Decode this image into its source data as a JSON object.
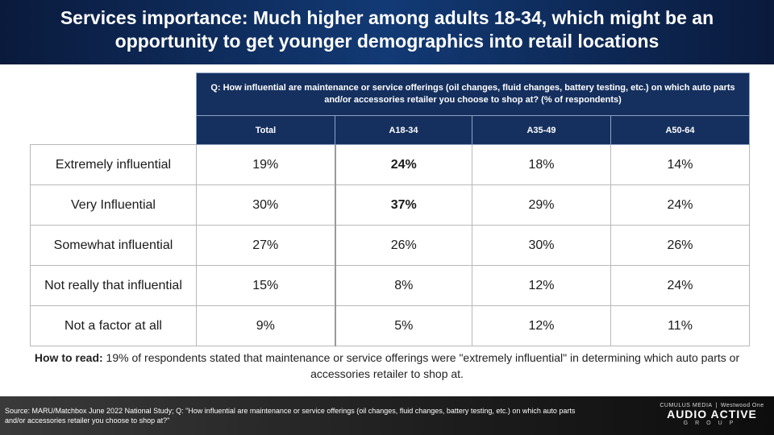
{
  "title": "Services importance: Much higher among adults 18-34, which might be an opportunity to get younger demographics into retail locations",
  "question": "Q: How influential are maintenance or service offerings (oil changes, fluid changes, battery testing, etc.) on which auto parts and/or accessories retailer you choose to shop at? (% of respondents)",
  "chart_data": {
    "type": "table",
    "columns": [
      "Total",
      "A18-34",
      "A35-49",
      "A50-64"
    ],
    "rows": [
      {
        "label": "Extremely influential",
        "values": [
          "19%",
          "24%",
          "18%",
          "14%"
        ]
      },
      {
        "label": "Very Influential",
        "values": [
          "30%",
          "37%",
          "29%",
          "24%"
        ]
      },
      {
        "label": "Somewhat influential",
        "values": [
          "27%",
          "26%",
          "30%",
          "26%"
        ]
      },
      {
        "label": "Not really that influential",
        "values": [
          "15%",
          "8%",
          "12%",
          "24%"
        ]
      },
      {
        "label": "Not a factor at all",
        "values": [
          "9%",
          "5%",
          "12%",
          "11%"
        ]
      }
    ],
    "highlighted": [
      [
        0,
        1
      ],
      [
        1,
        1
      ]
    ]
  },
  "how_to_read": {
    "label": "How to read:",
    "text": " 19% of respondents stated that maintenance or service offerings were \"extremely influential\" in determining which auto parts or accessories retailer to shop at."
  },
  "source": "Source: MARU/Matchbox June 2022 National Study; Q: \"How influential are maintenance or service offerings (oil changes, fluid changes, battery testing, etc.) on which auto parts and/or accessories retailer you choose to shop at?\"",
  "logo": {
    "top_left": "CUMULUS MEDIA",
    "top_right": "Westwood One",
    "main": "AUDIO ACTIVE",
    "sub": "GROUP"
  },
  "colors": {
    "header_bg": "#123a75",
    "table_header_bg": "#15305e",
    "footer_bg": "#1c1c1c"
  }
}
